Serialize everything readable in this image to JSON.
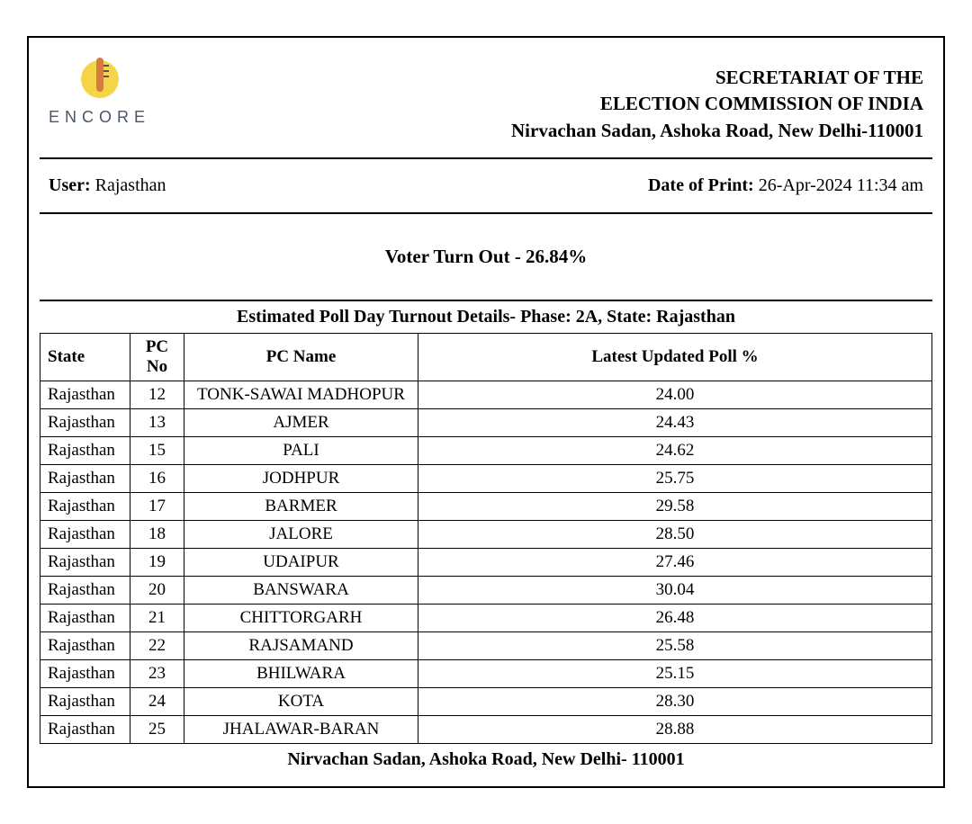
{
  "logo": {
    "text": "ENCORE",
    "colors": {
      "circle": "#f5d547",
      "thermo": "#d67b3e",
      "text": "#4a5568"
    }
  },
  "header": {
    "line1": "SECRETARIAT OF THE",
    "line2": "ELECTION COMMISSION OF INDIA",
    "line3": "Nirvachan Sadan, Ashoka Road, New Delhi-110001"
  },
  "user": {
    "label": "User:",
    "value": "Rajasthan"
  },
  "date": {
    "label": "Date of Print:",
    "value": "26-Apr-2024 11:34 am"
  },
  "turnout": {
    "text": "Voter Turn Out - 26.84%"
  },
  "table": {
    "title": "Estimated Poll Day Turnout Details- Phase: 2A, State: Rajasthan",
    "columns": {
      "state": "State",
      "pcno": "PC No",
      "pcname": "PC Name",
      "poll": "Latest Updated Poll %"
    },
    "rows": [
      {
        "state": "Rajasthan",
        "pcno": "12",
        "pcname": "TONK-SAWAI MADHOPUR",
        "poll": "24.00"
      },
      {
        "state": "Rajasthan",
        "pcno": "13",
        "pcname": "AJMER",
        "poll": "24.43"
      },
      {
        "state": "Rajasthan",
        "pcno": "15",
        "pcname": "PALI",
        "poll": "24.62"
      },
      {
        "state": "Rajasthan",
        "pcno": "16",
        "pcname": "JODHPUR",
        "poll": "25.75"
      },
      {
        "state": "Rajasthan",
        "pcno": "17",
        "pcname": "BARMER",
        "poll": "29.58"
      },
      {
        "state": "Rajasthan",
        "pcno": "18",
        "pcname": "JALORE",
        "poll": "28.50"
      },
      {
        "state": "Rajasthan",
        "pcno": "19",
        "pcname": "UDAIPUR",
        "poll": "27.46"
      },
      {
        "state": "Rajasthan",
        "pcno": "20",
        "pcname": "BANSWARA",
        "poll": "30.04"
      },
      {
        "state": "Rajasthan",
        "pcno": "21",
        "pcname": "CHITTORGARH",
        "poll": "26.48"
      },
      {
        "state": "Rajasthan",
        "pcno": "22",
        "pcname": "RAJSAMAND",
        "poll": "25.58"
      },
      {
        "state": "Rajasthan",
        "pcno": "23",
        "pcname": "BHILWARA",
        "poll": "25.15"
      },
      {
        "state": "Rajasthan",
        "pcno": "24",
        "pcname": "KOTA",
        "poll": "28.30"
      },
      {
        "state": "Rajasthan",
        "pcno": "25",
        "pcname": "JHALAWAR-BARAN",
        "poll": "28.88"
      }
    ]
  },
  "footer": {
    "text": "Nirvachan Sadan, Ashoka Road, New Delhi- 110001"
  }
}
